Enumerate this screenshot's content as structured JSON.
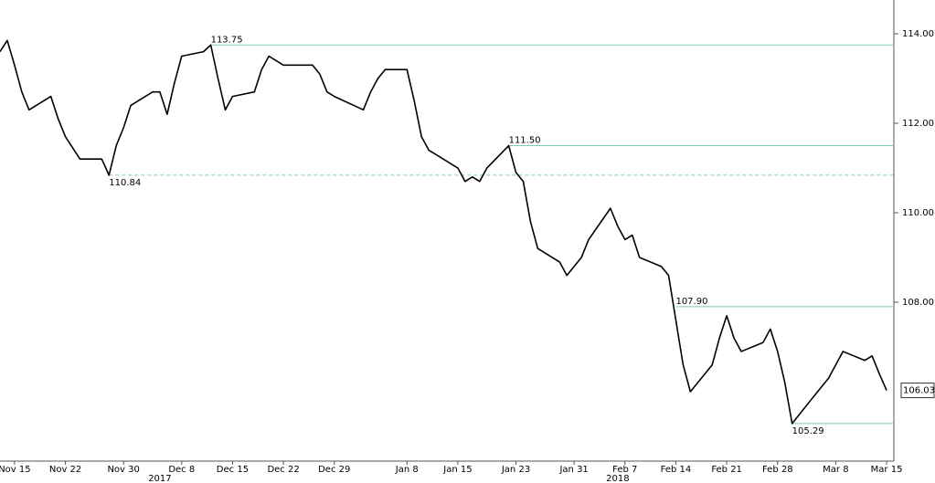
{
  "chart_data": {
    "type": "line",
    "x": [
      "2017-11-13",
      "2017-11-14",
      "2017-11-15",
      "2017-11-16",
      "2017-11-17",
      "2017-11-20",
      "2017-11-21",
      "2017-11-22",
      "2017-11-24",
      "2017-11-27",
      "2017-11-28",
      "2017-11-29",
      "2017-11-30",
      "2017-12-01",
      "2017-12-04",
      "2017-12-05",
      "2017-12-06",
      "2017-12-07",
      "2017-12-08",
      "2017-12-11",
      "2017-12-12",
      "2017-12-13",
      "2017-12-14",
      "2017-12-15",
      "2017-12-18",
      "2017-12-19",
      "2017-12-20",
      "2017-12-21",
      "2017-12-22",
      "2017-12-26",
      "2017-12-27",
      "2017-12-28",
      "2017-12-29",
      "2018-01-02",
      "2018-01-03",
      "2018-01-04",
      "2018-01-05",
      "2018-01-08",
      "2018-01-09",
      "2018-01-10",
      "2018-01-11",
      "2018-01-12",
      "2018-01-15",
      "2018-01-16",
      "2018-01-17",
      "2018-01-18",
      "2018-01-19",
      "2018-01-22",
      "2018-01-23",
      "2018-01-24",
      "2018-01-25",
      "2018-01-26",
      "2018-01-29",
      "2018-01-30",
      "2018-01-31",
      "2018-02-01",
      "2018-02-02",
      "2018-02-05",
      "2018-02-06",
      "2018-02-07",
      "2018-02-08",
      "2018-02-09",
      "2018-02-12",
      "2018-02-13",
      "2018-02-14",
      "2018-02-15",
      "2018-02-16",
      "2018-02-19",
      "2018-02-20",
      "2018-02-21",
      "2018-02-22",
      "2018-02-23",
      "2018-02-26",
      "2018-02-27",
      "2018-02-28",
      "2018-03-01",
      "2018-03-02",
      "2018-03-05",
      "2018-03-06",
      "2018-03-07",
      "2018-03-08",
      "2018-03-09",
      "2018-03-12",
      "2018-03-13",
      "2018-03-14",
      "2018-03-15"
    ],
    "series": [
      {
        "color": "#000000",
        "values": [
          113.6,
          113.85,
          113.3,
          112.7,
          112.3,
          112.6,
          112.1,
          111.7,
          111.2,
          111.2,
          110.84,
          111.5,
          111.9,
          112.4,
          112.7,
          112.7,
          112.2,
          112.9,
          113.5,
          113.6,
          113.75,
          113.0,
          112.3,
          112.6,
          112.7,
          113.2,
          113.5,
          113.4,
          113.3,
          113.3,
          113.1,
          112.7,
          112.6,
          112.3,
          112.7,
          113.0,
          113.2,
          113.2,
          112.5,
          111.7,
          111.4,
          111.3,
          111.0,
          110.7,
          110.8,
          110.7,
          111.0,
          111.5,
          110.9,
          110.7,
          109.8,
          109.2,
          108.9,
          108.6,
          108.8,
          109.0,
          109.4,
          110.1,
          109.7,
          109.4,
          109.5,
          109.0,
          108.8,
          108.6,
          107.6,
          106.6,
          106.0,
          106.6,
          107.2,
          107.7,
          107.2,
          106.9,
          107.1,
          107.4,
          106.9,
          106.2,
          105.29,
          105.9,
          106.1,
          106.3,
          106.6,
          106.9,
          106.7,
          106.8,
          106.4,
          106.03
        ]
      }
    ],
    "last_label": 106.03,
    "xlim": [
      "2017-11-13",
      "2018-03-16"
    ],
    "xticks": [
      {
        "value": "2017-11-15",
        "label": "Nov 15"
      },
      {
        "value": "2017-11-22",
        "label": "Nov 22"
      },
      {
        "value": "2017-11-30",
        "label": "Nov 30"
      },
      {
        "value": "2017-12-08",
        "label": "Dec 8"
      },
      {
        "value": "2017-12-15",
        "label": "Dec 15"
      },
      {
        "value": "2017-12-22",
        "label": "Dec 22"
      },
      {
        "value": "2017-12-29",
        "label": "Dec 29"
      },
      {
        "value": "2018-01-08",
        "label": "Jan 8"
      },
      {
        "value": "2018-01-15",
        "label": "Jan 15"
      },
      {
        "value": "2018-01-23",
        "label": "Jan 23"
      },
      {
        "value": "2018-01-31",
        "label": "Jan 31"
      },
      {
        "value": "2018-02-07",
        "label": "Feb 7"
      },
      {
        "value": "2018-02-14",
        "label": "Feb 14"
      },
      {
        "value": "2018-02-21",
        "label": "Feb 21"
      },
      {
        "value": "2018-02-28",
        "label": "Feb 28"
      },
      {
        "value": "2018-03-08",
        "label": "Mar 8"
      },
      {
        "value": "2018-03-15",
        "label": "Mar 15"
      }
    ],
    "years": [
      {
        "value": "2017-12-05",
        "label": "2017"
      },
      {
        "value": "2018-02-06",
        "label": "2018"
      }
    ],
    "ylim": [
      104.45,
      114.755
    ],
    "yticks": [
      {
        "value": 114,
        "label": "114.00"
      },
      {
        "value": 112,
        "label": "112.00"
      },
      {
        "value": 110,
        "label": "110.00"
      },
      {
        "value": 108,
        "label": "108.00"
      }
    ],
    "levels": [
      {
        "value": 113.75,
        "label": "113.75",
        "start": "2017-12-12",
        "dashed": false,
        "label_side": "above"
      },
      {
        "value": 111.5,
        "label": "111.50",
        "start": "2018-01-22",
        "dashed": false,
        "label_side": "above"
      },
      {
        "value": 110.84,
        "label": "110.84",
        "start": "2017-11-28",
        "dashed": true,
        "label_side": "below"
      },
      {
        "value": 107.9,
        "label": "107.90",
        "start": "2018-02-14",
        "dashed": false,
        "label_side": "above"
      },
      {
        "value": 105.29,
        "label": "105.29",
        "start": "2018-03-02",
        "dashed": false,
        "label_side": "below"
      }
    ],
    "level_color": "#7fcbb4"
  }
}
